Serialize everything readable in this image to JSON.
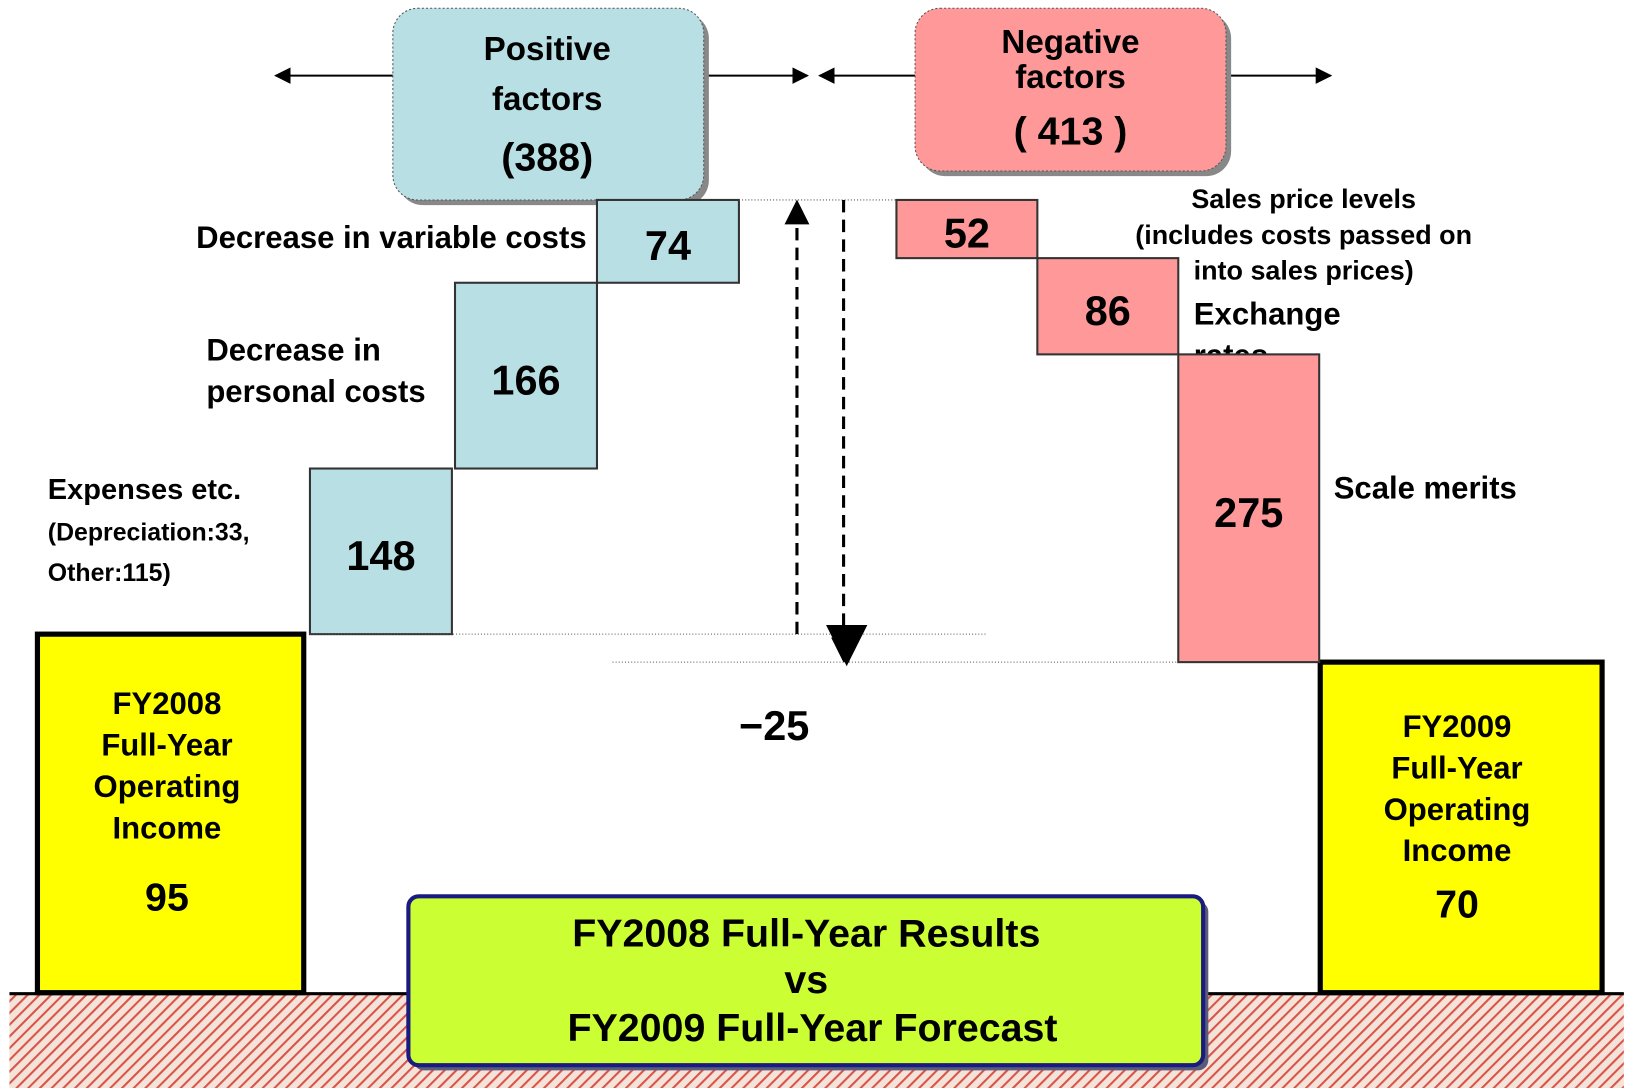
{
  "chart_data": {
    "type": "waterfall",
    "title": [
      "FY2008 Full-Year Results",
      "vs",
      "FY2009 Full-Year Forecast"
    ],
    "start": {
      "label": [
        "FY2008",
        "Full-Year",
        "Operating",
        "Income"
      ],
      "value": 95,
      "color": "#ffff00"
    },
    "end": {
      "label": [
        "FY2009",
        "Full-Year",
        "Operating",
        "Income"
      ],
      "value": 70,
      "color": "#ffff00"
    },
    "positive": {
      "title": [
        "Positive",
        "factors"
      ],
      "total": 388,
      "total_label": "(388)",
      "color": "#b8dfe3",
      "categories": [
        [
          "Expenses etc.",
          "(Depreciation:33,",
          "Other:115)"
        ],
        [
          "Decrease in",
          "personal costs"
        ],
        [
          "Decrease in variable costs"
        ]
      ],
      "values": [
        148,
        166,
        74
      ]
    },
    "negative": {
      "title": [
        "Negative",
        "factors"
      ],
      "total": 413,
      "total_label": "( 413 )",
      "color": "#ff9999",
      "categories": [
        [
          "Sales price levels",
          "(includes costs passed on",
          "into sales prices)"
        ],
        [
          "Exchange",
          "rates"
        ],
        [
          "Scale merits"
        ]
      ],
      "values": [
        52,
        86,
        275
      ]
    },
    "change": {
      "value": -25,
      "label": "−25"
    }
  }
}
